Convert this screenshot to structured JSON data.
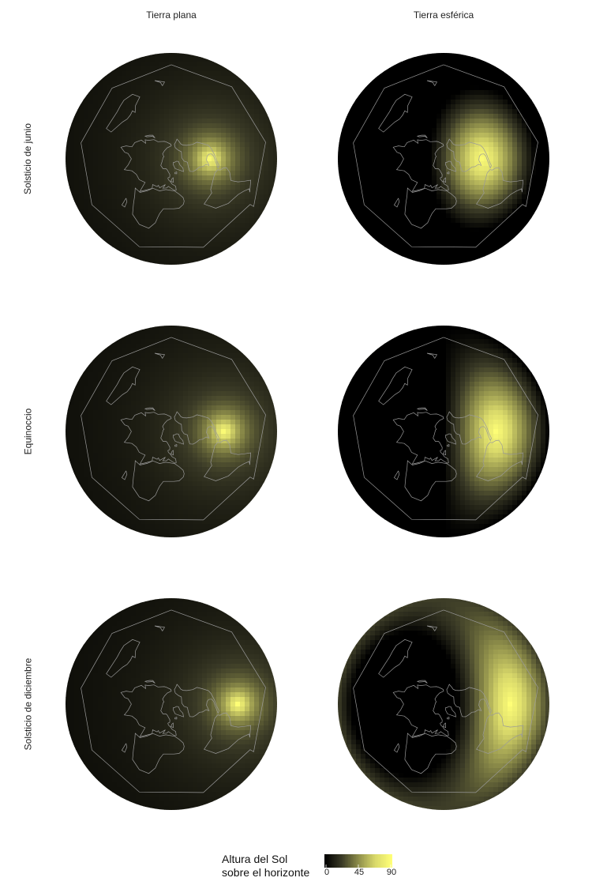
{
  "chart_data": {
    "type": "heatmap",
    "columns": [
      "Tierra plana",
      "Tierra esférica"
    ],
    "rows": [
      "Solsticio de junio",
      "Equinoccio",
      "Solsticio de diciembre"
    ],
    "panels": [
      {
        "row": "Solsticio de junio",
        "column": "Tierra plana",
        "model": "flat",
        "subsolar_lat": 23.44,
        "subsolar_lon": -90
      },
      {
        "row": "Solsticio de junio",
        "column": "Tierra esférica",
        "model": "sphere",
        "subsolar_lat": 23.44,
        "subsolar_lon": -90
      },
      {
        "row": "Equinoccio",
        "column": "Tierra plana",
        "model": "flat",
        "subsolar_lat": 0,
        "subsolar_lon": -90
      },
      {
        "row": "Equinoccio",
        "column": "Tierra esférica",
        "model": "sphere",
        "subsolar_lat": 0,
        "subsolar_lon": -90
      },
      {
        "row": "Solsticio de diciembre",
        "column": "Tierra plana",
        "model": "flat",
        "subsolar_lat": -23.44,
        "subsolar_lon": -90
      },
      {
        "row": "Solsticio de diciembre",
        "column": "Tierra esférica",
        "model": "sphere",
        "subsolar_lat": -23.44,
        "subsolar_lon": -90
      }
    ],
    "legend": {
      "title_line1": "Altura del Sol",
      "title_line2": "sobre el horizonte",
      "ticks": [
        "0",
        "45",
        "90"
      ],
      "range": [
        0,
        90
      ],
      "colors": [
        "#000000",
        "#3a3a26",
        "#8d8d4a",
        "#d8d86a",
        "#ffff77"
      ]
    },
    "coastline_color": "#9a9a9a"
  }
}
